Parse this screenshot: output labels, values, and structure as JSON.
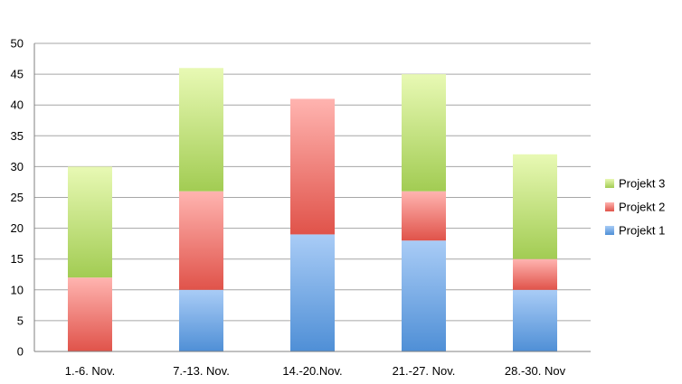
{
  "chart_data": {
    "type": "bar",
    "stacked": true,
    "title": "",
    "xlabel": "",
    "ylabel": "",
    "categories": [
      "1.-6. Nov.",
      "7.-13. Nov.",
      "14.-20.Nov.",
      "21.-27. Nov.",
      "28.-30. Nov"
    ],
    "series": [
      {
        "name": "Projekt 1",
        "values": [
          0,
          10,
          19,
          18,
          10
        ],
        "color_top": "#a9ccf6",
        "color_bottom": "#4f8fd6"
      },
      {
        "name": "Projekt 2",
        "values": [
          12,
          16,
          22,
          8,
          5
        ],
        "color_top": "#ffb4b0",
        "color_bottom": "#e0534a"
      },
      {
        "name": "Projekt 3",
        "values": [
          18,
          20,
          0,
          19,
          17
        ],
        "color_top": "#e8f9b4",
        "color_bottom": "#a2cc53"
      }
    ],
    "ylim": [
      0,
      50
    ],
    "yticks": [
      0,
      5,
      10,
      15,
      20,
      25,
      30,
      35,
      40,
      45,
      50
    ],
    "grid": true,
    "legend_position": "right"
  }
}
